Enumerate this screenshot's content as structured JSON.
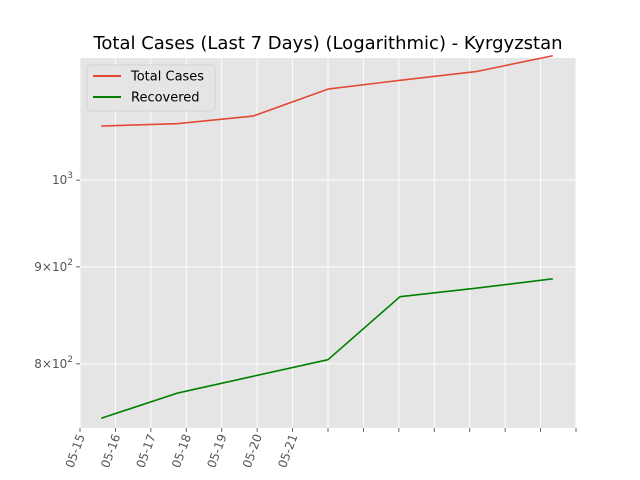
{
  "chart_data": {
    "type": "line",
    "title": "Total Cases (Last 7 Days) (Logarithmic) - Kyrgyzstan",
    "xlabel": "",
    "ylabel": "",
    "y_scale": "log",
    "ylim": [
      740,
      1160
    ],
    "x_tick_labels": [
      "05-15",
      "05-16",
      "05-17",
      "05-18",
      "05-19",
      "05-20",
      "05-21"
    ],
    "y_ticks": [
      {
        "value": 800,
        "base": "8",
        "sup": "2"
      },
      {
        "value": 900,
        "base": "9",
        "sup": "2"
      },
      {
        "value": 1000,
        "base": "",
        "sup": "3"
      }
    ],
    "x": [
      "05-15",
      "05-16",
      "05-17",
      "05-18",
      "05-19",
      "05-20",
      "05-21"
    ],
    "series": [
      {
        "name": "Total Cases",
        "color": "#e24a33",
        "values": [
          1068,
          1071,
          1081,
          1117,
          1129,
          1141,
          1163
        ]
      },
      {
        "name": "Recovered",
        "color": "#008000",
        "values": [
          749,
          772,
          788,
          804,
          868,
          877,
          887
        ]
      }
    ],
    "grid": true,
    "legend_position": "top-left",
    "plot_background": "#e5e5e5"
  }
}
